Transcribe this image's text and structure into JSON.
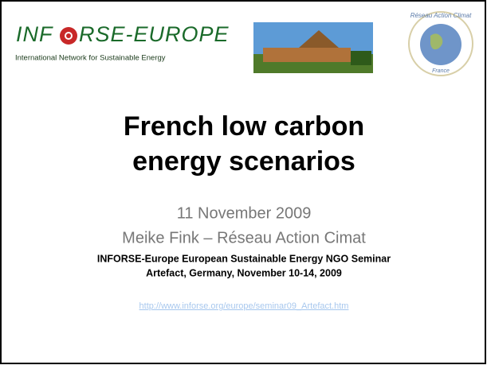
{
  "header": {
    "logo_left": "INF",
    "logo_right": "RSE-EUROPE",
    "logo_tagline": "International Network for Sustainable Energy",
    "badge_top": "Réseau Action Climat",
    "badge_bottom": "France"
  },
  "title": [
    "French low carbon",
    "energy scenarios"
  ],
  "date": "11 November 2009",
  "author": "Meike Fink – Réseau Action Cimat",
  "event": [
    "INFORSE-Europe European Sustainable Energy NGO Seminar",
    "Artefact, Germany, November 10-14, 2009"
  ],
  "link": "http://www.inforse.org/europe/seminar09_Artefact.htm"
}
